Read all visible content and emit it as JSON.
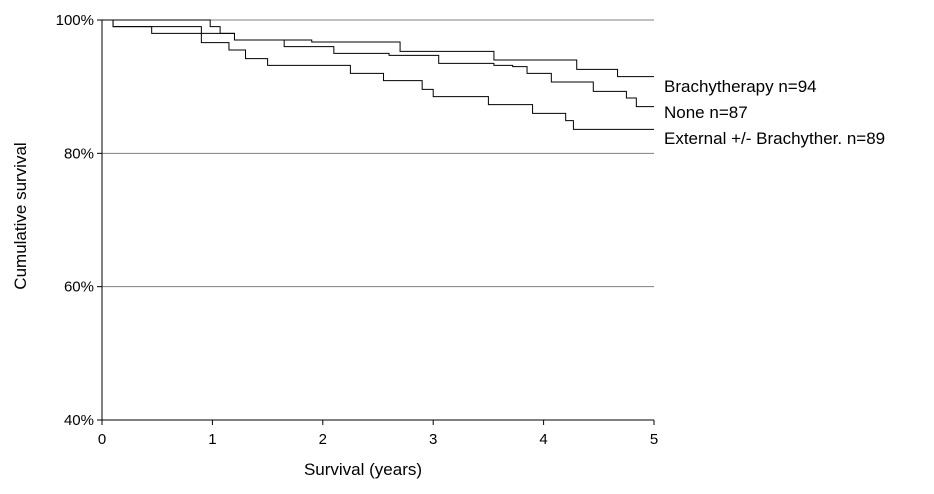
{
  "chart_data": {
    "type": "line",
    "title": "",
    "xlabel": "Survival  (years)",
    "ylabel": "Cumulative survival",
    "xlim": [
      0,
      5
    ],
    "ylim": [
      40,
      100
    ],
    "x_ticks": [
      0,
      1,
      2,
      3,
      4,
      5
    ],
    "y_ticks": [
      40,
      60,
      80,
      100
    ],
    "x_tick_labels": [
      "0",
      "1",
      "2",
      "3",
      "4",
      "5"
    ],
    "y_tick_labels": [
      "40%",
      "60%",
      "80%",
      "100%"
    ],
    "grid": "horizontal gridlines at 80%, 60%",
    "line_color": "#000000",
    "grid_color": "#808080",
    "series": [
      {
        "name": "Brachytherapy n=94",
        "x": [
          0,
          0.95,
          0.98,
          1.07,
          1.2,
          1.9,
          2.7,
          3.55,
          4.3,
          4.67,
          5.0
        ],
        "y": [
          100,
          100,
          99,
          98,
          97,
          96.7,
          95.3,
          94.0,
          92.6,
          91.5,
          91.5
        ]
      },
      {
        "name": "None n=87",
        "x": [
          0,
          0.1,
          0.9,
          1.2,
          1.65,
          2.1,
          2.6,
          3.05,
          3.55,
          3.72,
          3.85,
          4.07,
          4.45,
          4.7,
          4.75,
          4.84,
          4.88,
          5.0
        ],
        "y": [
          100,
          99,
          98,
          97,
          96,
          95,
          94.7,
          93.5,
          93.2,
          93.0,
          92.0,
          90.7,
          89.3,
          89.3,
          88.3,
          87.0,
          87.0,
          87.0
        ],
        "stepped": true
      },
      {
        "name": "External +/- Brachyther. n=89",
        "x": [
          0,
          0.1,
          0.45,
          0.9,
          1.15,
          1.3,
          1.5,
          2.25,
          2.55,
          2.9,
          3.0,
          3.15,
          3.5,
          3.9,
          4.2,
          4.27,
          5.0
        ],
        "y": [
          100,
          99,
          98,
          96.6,
          95.5,
          94.2,
          93.2,
          92.0,
          90.9,
          89.6,
          88.5,
          88.5,
          87.3,
          86.0,
          84.9,
          83.6,
          83.6
        ],
        "stepped": true
      }
    ]
  }
}
